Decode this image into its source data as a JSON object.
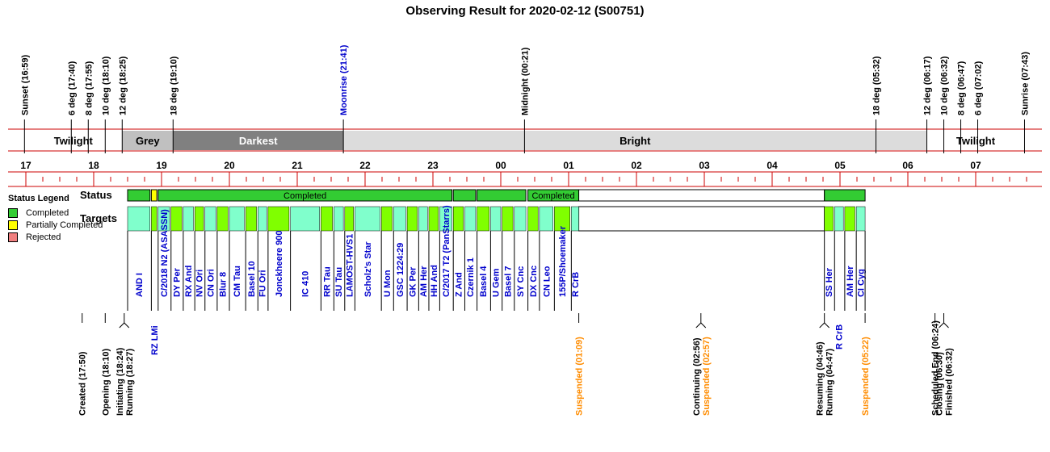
{
  "title": "Observing Result for 2020-02-12 (S00751)",
  "legend": {
    "heading": "Status Legend",
    "items": [
      {
        "label": "Completed",
        "color": "#33cc33"
      },
      {
        "label": "Partially Completed",
        "color": "#ffff00"
      },
      {
        "label": "Rejected",
        "color": "#f08080"
      }
    ]
  },
  "row_labels": {
    "status": "Status",
    "targets": "Targets"
  },
  "colors": {
    "twilight": "#ffffff",
    "grey": "#c0c0c0",
    "darkest": "#808080",
    "bright": "#dcdcdc",
    "axis_red": "#cc0000",
    "completed": "#33cc33",
    "partial": "#ffff00",
    "target_cyan": "#80ffcc",
    "target_green": "#80ff00",
    "blue_text": "#0000cc",
    "orange_text": "#ff8c00"
  },
  "time_axis": {
    "start_hour": 17.0,
    "end_hour": 31.8,
    "ticks": [
      "17",
      "18",
      "19",
      "20",
      "21",
      "22",
      "23",
      "00",
      "01",
      "02",
      "03",
      "04",
      "05",
      "06",
      "07"
    ]
  },
  "sky_events": [
    {
      "label": "Sunset (16:59)",
      "t": 16.98,
      "color": "#000000"
    },
    {
      "label": "6 deg (17:40)",
      "t": 17.67,
      "color": "#000000"
    },
    {
      "label": "8 deg (17:55)",
      "t": 17.92,
      "color": "#000000"
    },
    {
      "label": "10 deg (18:10)",
      "t": 18.17,
      "color": "#000000"
    },
    {
      "label": "12 deg (18:25)",
      "t": 18.42,
      "color": "#000000"
    },
    {
      "label": "18 deg (19:10)",
      "t": 19.17,
      "color": "#000000"
    },
    {
      "label": "Moonrise (21:41)",
      "t": 21.68,
      "color": "#0000cc"
    },
    {
      "label": "Midnight (00:21)",
      "t": 24.35,
      "color": "#000000"
    },
    {
      "label": "18 deg (05:32)",
      "t": 29.53,
      "color": "#000000"
    },
    {
      "label": "12 deg (06:17)",
      "t": 30.28,
      "color": "#000000"
    },
    {
      "label": "10 deg (06:32)",
      "t": 30.53,
      "color": "#000000"
    },
    {
      "label": "8 deg (06:47)",
      "t": 30.78,
      "color": "#000000"
    },
    {
      "label": "6 deg (07:02)",
      "t": 31.03,
      "color": "#000000"
    },
    {
      "label": "Sunrise (07:43)",
      "t": 31.72,
      "color": "#000000"
    }
  ],
  "sky_bands": [
    {
      "label": "Twilight",
      "t0": 16.98,
      "t1": 18.42,
      "kind": "twilight"
    },
    {
      "label": "Grey",
      "t0": 18.42,
      "t1": 19.17,
      "kind": "grey"
    },
    {
      "label": "Darkest",
      "t0": 19.17,
      "t1": 21.68,
      "kind": "darkest"
    },
    {
      "label": "Bright",
      "t0": 21.68,
      "t1": 30.28,
      "kind": "bright"
    },
    {
      "label": "Twilight",
      "t0": 30.28,
      "t1": 31.72,
      "kind": "twilight"
    }
  ],
  "status_segments": [
    {
      "t0": 18.5,
      "t1": 18.83,
      "kind": "completed",
      "label": ""
    },
    {
      "t0": 18.85,
      "t1": 18.93,
      "kind": "partial",
      "label": ""
    },
    {
      "t0": 18.95,
      "t1": 23.28,
      "kind": "completed",
      "label": "Completed"
    },
    {
      "t0": 23.3,
      "t1": 23.63,
      "kind": "completed",
      "label": ""
    },
    {
      "t0": 23.65,
      "t1": 24.37,
      "kind": "completed",
      "label": ""
    },
    {
      "t0": 24.4,
      "t1": 25.15,
      "kind": "completed",
      "label": "Completed"
    },
    {
      "t0": 25.15,
      "t1": 28.77,
      "kind": "empty",
      "label": ""
    },
    {
      "t0": 28.77,
      "t1": 29.37,
      "kind": "completed",
      "label": ""
    }
  ],
  "targets": [
    {
      "name": "AND I",
      "t0": 18.5,
      "t1": 18.83,
      "kind": "cyan"
    },
    {
      "name": "RZ LMi",
      "t0": 18.85,
      "t1": 18.93,
      "kind": "green"
    },
    {
      "name": "C/2018 N2 (ASASSN)",
      "t0": 18.95,
      "t1": 19.12,
      "kind": "cyan"
    },
    {
      "name": "DY Per",
      "t0": 19.14,
      "t1": 19.3,
      "kind": "green"
    },
    {
      "name": "RX And",
      "t0": 19.32,
      "t1": 19.47,
      "kind": "cyan"
    },
    {
      "name": "NV Ori",
      "t0": 19.49,
      "t1": 19.62,
      "kind": "green"
    },
    {
      "name": "CN Ori",
      "t0": 19.64,
      "t1": 19.8,
      "kind": "cyan"
    },
    {
      "name": "Blur 8",
      "t0": 19.82,
      "t1": 19.98,
      "kind": "green"
    },
    {
      "name": "CM Tau",
      "t0": 20.0,
      "t1": 20.22,
      "kind": "cyan"
    },
    {
      "name": "Basel 10",
      "t0": 20.24,
      "t1": 20.4,
      "kind": "green"
    },
    {
      "name": "FU Ori",
      "t0": 20.42,
      "t1": 20.55,
      "kind": "cyan"
    },
    {
      "name": "Jonckheere 900",
      "t0": 20.57,
      "t1": 20.88,
      "kind": "green"
    },
    {
      "name": "IC 410",
      "t0": 20.9,
      "t1": 21.33,
      "kind": "cyan"
    },
    {
      "name": "RR Tau",
      "t0": 21.35,
      "t1": 21.52,
      "kind": "green"
    },
    {
      "name": "SU Tau",
      "t0": 21.54,
      "t1": 21.68,
      "kind": "cyan"
    },
    {
      "name": "LAMOST-HVS1",
      "t0": 21.7,
      "t1": 21.83,
      "kind": "green"
    },
    {
      "name": "Scholz's Star",
      "t0": 21.85,
      "t1": 22.22,
      "kind": "cyan"
    },
    {
      "name": "U Mon",
      "t0": 22.24,
      "t1": 22.4,
      "kind": "green"
    },
    {
      "name": "GSC 1224:29",
      "t0": 22.42,
      "t1": 22.6,
      "kind": "cyan"
    },
    {
      "name": "GK Per",
      "t0": 22.62,
      "t1": 22.77,
      "kind": "green"
    },
    {
      "name": "AM Her",
      "t0": 22.79,
      "t1": 22.92,
      "kind": "cyan"
    },
    {
      "name": "HH And",
      "t0": 22.94,
      "t1": 23.08,
      "kind": "green"
    },
    {
      "name": "C/2017 T2 (PanStarrs)",
      "t0": 23.1,
      "t1": 23.28,
      "kind": "cyan"
    },
    {
      "name": "Z And",
      "t0": 23.3,
      "t1": 23.45,
      "kind": "green"
    },
    {
      "name": "Czernik 1",
      "t0": 23.47,
      "t1": 23.63,
      "kind": "cyan"
    },
    {
      "name": "Basel 4",
      "t0": 23.65,
      "t1": 23.83,
      "kind": "green"
    },
    {
      "name": "U Gem",
      "t0": 23.85,
      "t1": 24.0,
      "kind": "cyan"
    },
    {
      "name": "Basel 7",
      "t0": 24.02,
      "t1": 24.18,
      "kind": "green"
    },
    {
      "name": "SY Cnc",
      "t0": 24.2,
      "t1": 24.37,
      "kind": "cyan"
    },
    {
      "name": "DX Cnc",
      "t0": 24.4,
      "t1": 24.55,
      "kind": "green"
    },
    {
      "name": "CN Leo",
      "t0": 24.57,
      "t1": 24.77,
      "kind": "cyan"
    },
    {
      "name": "155P/Shoemaker",
      "t0": 24.79,
      "t1": 25.02,
      "kind": "green"
    },
    {
      "name": "R CrB",
      "t0": 25.04,
      "t1": 25.15,
      "kind": "cyan"
    },
    {
      "name": "SS Her",
      "t0": 28.77,
      "t1": 28.9,
      "kind": "green"
    },
    {
      "name": "R CrB",
      "t0": 28.92,
      "t1": 29.05,
      "kind": "cyan"
    },
    {
      "name": "AM Her",
      "t0": 29.07,
      "t1": 29.22,
      "kind": "green"
    },
    {
      "name": "CI Cyg",
      "t0": 29.24,
      "t1": 29.37,
      "kind": "cyan"
    }
  ],
  "events": [
    {
      "lines": [
        "Created (17:50)"
      ],
      "t": 17.83,
      "color": "#000000"
    },
    {
      "lines": [
        "Opening (18:10)"
      ],
      "t": 18.17,
      "color": "#000000"
    },
    {
      "lines": [
        "Initiating (18:24)",
        "Running (18:27)"
      ],
      "t": 18.45,
      "color": "#000000"
    },
    {
      "lines": [
        "Suspended (01:09)"
      ],
      "t": 25.15,
      "color": "#ff8c00"
    },
    {
      "lines": [
        "Continuing (02:56)",
        "Suspended (02:57)"
      ],
      "t": 26.95,
      "color": "#000000",
      "second_color": "#ff8c00"
    },
    {
      "lines": [
        "Resuming (04:46)",
        "Running (04:47)"
      ],
      "t": 28.77,
      "color": "#000000"
    },
    {
      "lines": [
        "Suspended (05:22)"
      ],
      "t": 29.37,
      "color": "#ff8c00"
    },
    {
      "lines": [
        "Scheduled End (06:24)"
      ],
      "t": 30.4,
      "color": "#000000"
    },
    {
      "lines": [
        "Closing (06:30)",
        "Finished (06:32)"
      ],
      "t": 30.53,
      "color": "#000000"
    }
  ]
}
